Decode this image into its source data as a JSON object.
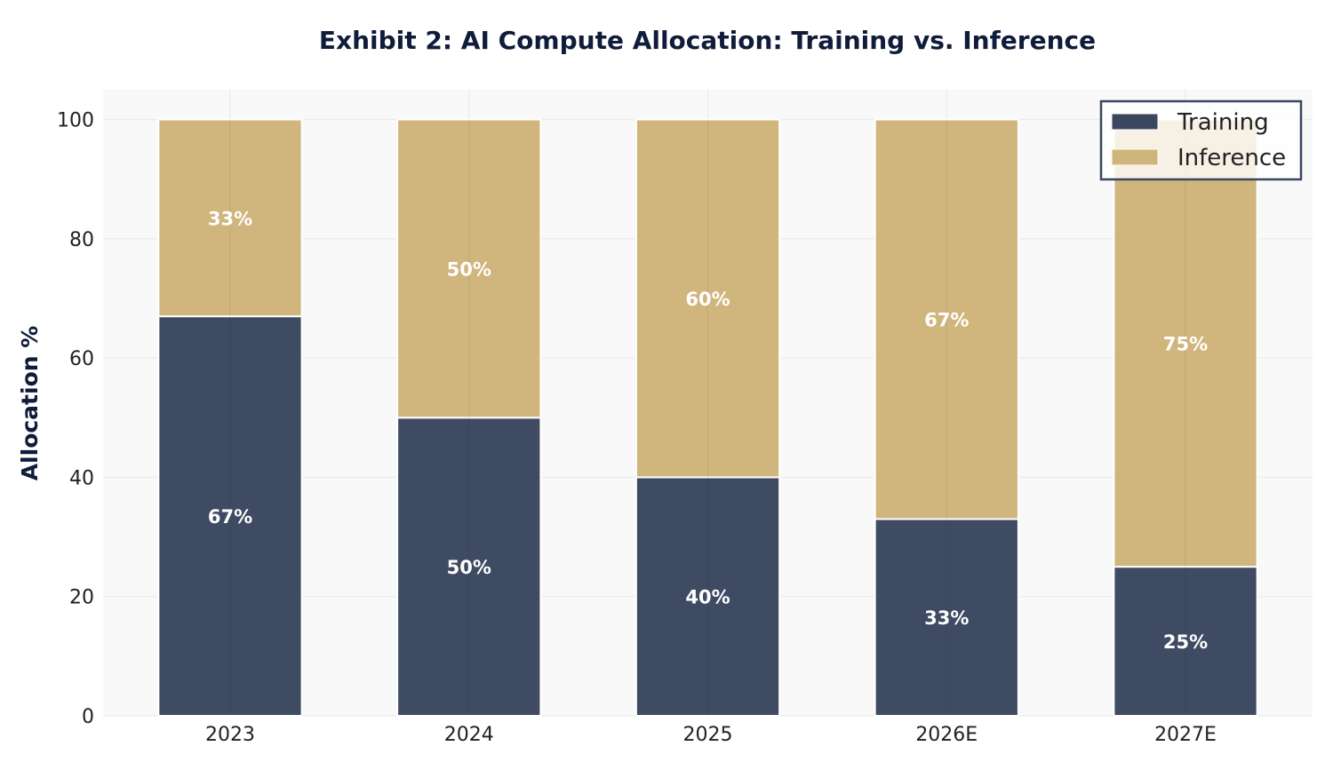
{
  "chart_data": {
    "type": "bar",
    "stacked": true,
    "title": "Exhibit 2: AI Compute Allocation: Training vs. Inference",
    "xlabel": "",
    "ylabel": "Allocation %",
    "categories": [
      "2023",
      "2024",
      "2025",
      "2026E",
      "2027E"
    ],
    "series": [
      {
        "name": "Training",
        "color": "#3b4760",
        "values": [
          67,
          50,
          40,
          33,
          25
        ],
        "labels": [
          "67%",
          "50%",
          "40%",
          "33%",
          "25%"
        ]
      },
      {
        "name": "Inference",
        "color": "#cfb57a",
        "values": [
          33,
          50,
          60,
          67,
          75
        ],
        "labels": [
          "33%",
          "50%",
          "60%",
          "67%",
          "75%"
        ]
      }
    ],
    "ylim": [
      0,
      105
    ],
    "yticks": [
      0,
      20,
      40,
      60,
      80,
      100
    ],
    "grid": true,
    "legend": "top-right",
    "colors": {
      "title": "#0f1c3a",
      "plot_background": "#f9f9f9",
      "grid": "#ebebeb",
      "legend_border": "#3b4760",
      "data_label": "#ffffff"
    }
  }
}
